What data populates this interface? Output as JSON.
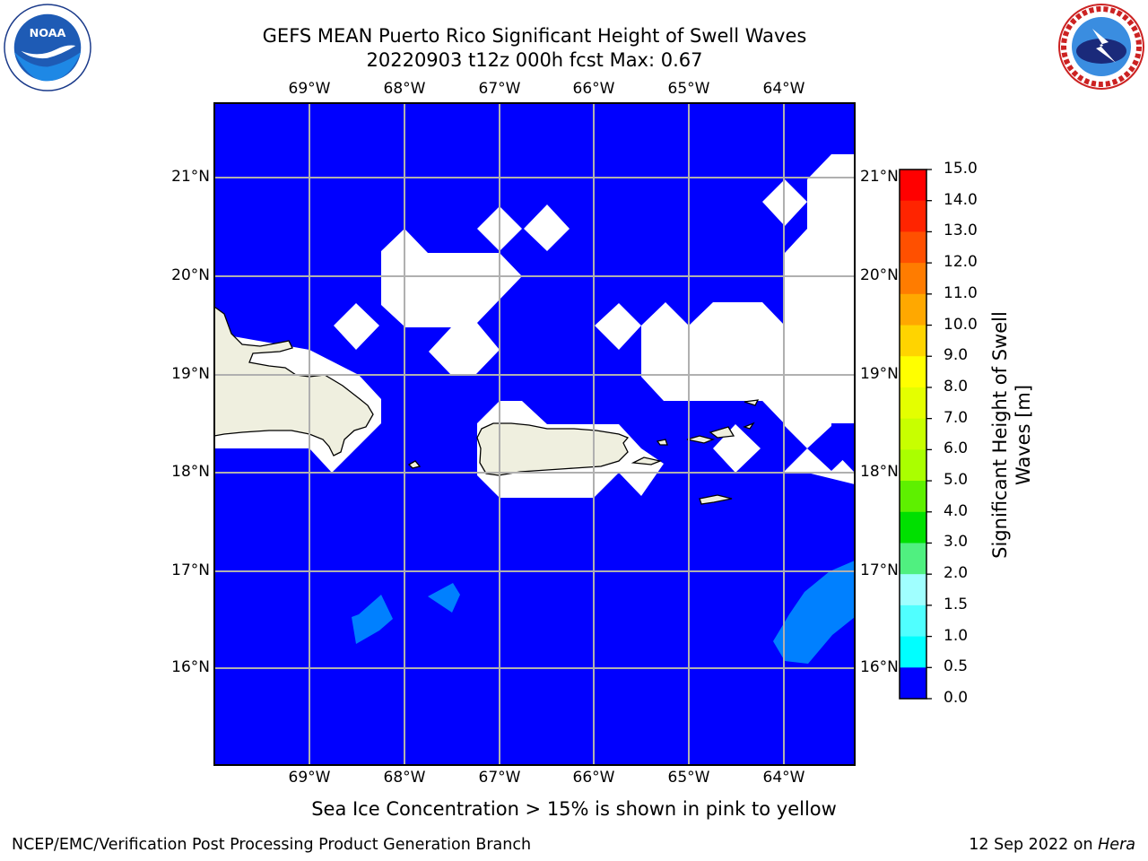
{
  "header": {
    "title_line1": "GEFS MEAN Puerto Rico Significant Height of Swell Waves",
    "title_line2": "20220903 t12z 000h fcst   Max: 0.67"
  },
  "logos": {
    "left": {
      "icon": "noaa-logo",
      "ring_text": "NATIONAL OCEANIC AND ATMOSPHERIC ADMINISTRATION · U.S. DEPARTMENT OF COMMERCE",
      "center_text": "NOAA"
    },
    "right": {
      "icon": "nws-logo",
      "ring_text": "NATIONAL WEATHER SERVICE"
    }
  },
  "map": {
    "lon_labels": [
      "69°W",
      "68°W",
      "67°W",
      "66°W",
      "65°W",
      "64°W"
    ],
    "lat_labels": [
      "21°N",
      "20°N",
      "19°N",
      "18°N",
      "17°N",
      "16°N"
    ],
    "extent": {
      "lon": [
        -70,
        -63.25
      ],
      "lat": [
        15.0,
        21.75
      ]
    },
    "colors": {
      "ocean_low": "#0000ff",
      "ocean_mid": "#0080ff",
      "land": "#efefdf",
      "masked": "#ffffff",
      "grid": "#b0b0b0"
    }
  },
  "colorbar": {
    "label": "Significant Height of Swell Waves [m]",
    "ticks": [
      "15.0",
      "14.0",
      "13.0",
      "12.0",
      "11.0",
      "10.0",
      "9.0",
      "8.0",
      "7.0",
      "6.0",
      "5.0",
      "4.0",
      "3.0",
      "2.0",
      "1.5",
      "1.0",
      "0.5",
      "0.0"
    ],
    "colors": [
      "#ff0000",
      "#ff2400",
      "#ff5000",
      "#ff7c00",
      "#ffa800",
      "#ffd400",
      "#ffff00",
      "#e4ff00",
      "#c8ff00",
      "#aaff00",
      "#5ef000",
      "#00e000",
      "#50f080",
      "#a0ffff",
      "#50ffff",
      "#00ffff",
      "#0080ff",
      "#0000ff"
    ]
  },
  "subtitle": "Sea Ice Concentration > 15% is shown in pink to yellow",
  "footer": {
    "left": "NCEP/EMC/Verification Post Processing Product Generation Branch",
    "right_date": "12 Sep 2022 on ",
    "right_host": "Hera"
  }
}
